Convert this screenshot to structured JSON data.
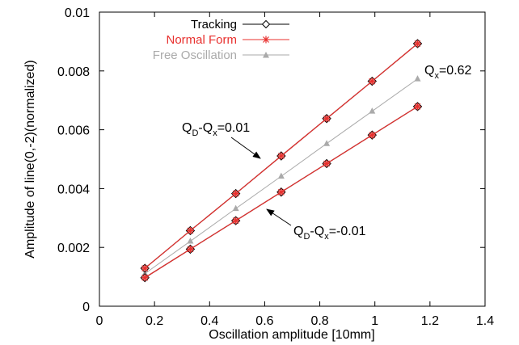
{
  "chart_data": {
    "type": "line",
    "title": "",
    "xlabel": "Oscillation amplitude [10mm]",
    "ylabel": "Amplitude of line(0,-2)(normalized)",
    "xlim": [
      0,
      1.4
    ],
    "ylim": [
      0,
      0.01
    ],
    "x_ticks": [
      "0",
      "0.2",
      "0.4",
      "0.6",
      "0.8",
      "1",
      "1.2",
      "1.4"
    ],
    "y_ticks": [
      "0",
      "0.002",
      "0.004",
      "0.006",
      "0.008",
      "0.01"
    ],
    "x_tick_values": [
      0,
      0.2,
      0.4,
      0.6,
      0.8,
      1.0,
      1.2,
      1.4
    ],
    "y_tick_values": [
      0,
      0.002,
      0.004,
      0.006,
      0.008,
      0.01
    ],
    "grid": false,
    "legend_position": "top-left",
    "x": [
      0.165,
      0.33,
      0.495,
      0.66,
      0.825,
      0.99,
      1.155
    ],
    "series": [
      {
        "name": "Tracking",
        "group": "upper",
        "color": "#000000",
        "marker": "diamond",
        "values": [
          0.00129,
          0.00257,
          0.00383,
          0.00511,
          0.00638,
          0.00765,
          0.00893
        ]
      },
      {
        "name": "Normal Form",
        "group": "upper",
        "color": "#e8302e",
        "marker": "star",
        "values": [
          0.00129,
          0.00257,
          0.00383,
          0.00511,
          0.00638,
          0.00765,
          0.00893
        ]
      },
      {
        "name": "Tracking",
        "group": "lower",
        "color": "#000000",
        "marker": "diamond",
        "values": [
          0.00097,
          0.00194,
          0.00291,
          0.00388,
          0.00485,
          0.00582,
          0.00679
        ]
      },
      {
        "name": "Normal Form",
        "group": "lower",
        "color": "#e8302e",
        "marker": "star",
        "values": [
          0.00097,
          0.00194,
          0.00291,
          0.00388,
          0.00485,
          0.00582,
          0.00679
        ]
      },
      {
        "name": "Free Oscillation",
        "group": "middle",
        "color": "#aaaaaa",
        "marker": "triangle",
        "values": [
          0.00111,
          0.00221,
          0.00332,
          0.00442,
          0.00553,
          0.00663,
          0.00773
        ]
      }
    ],
    "legend": [
      {
        "label": "Tracking",
        "color": "#000000",
        "text_color": "#000000",
        "marker": "diamond"
      },
      {
        "label": "Normal Form",
        "color": "#e8302e",
        "text_color": "#e8302e",
        "marker": "star"
      },
      {
        "label": "Free Oscillation",
        "color": "#aaaaaa",
        "text_color": "#aaaaaa",
        "marker": "triangle"
      }
    ],
    "annotations": {
      "upper": {
        "q1": "Q",
        "s1": "D",
        "mid": "-Q",
        "s2": "x",
        "rest": "=0.01",
        "arrow_to": [
          0.71,
          0.005
        ]
      },
      "lower": {
        "q1": "Q",
        "s1": "D",
        "mid": "-Q",
        "s2": "x",
        "rest": "=-0.01",
        "arrow_to": [
          0.6,
          0.0033
        ]
      },
      "qx": {
        "q1": "Q",
        "s1": "x",
        "rest": "=0.62"
      }
    }
  }
}
